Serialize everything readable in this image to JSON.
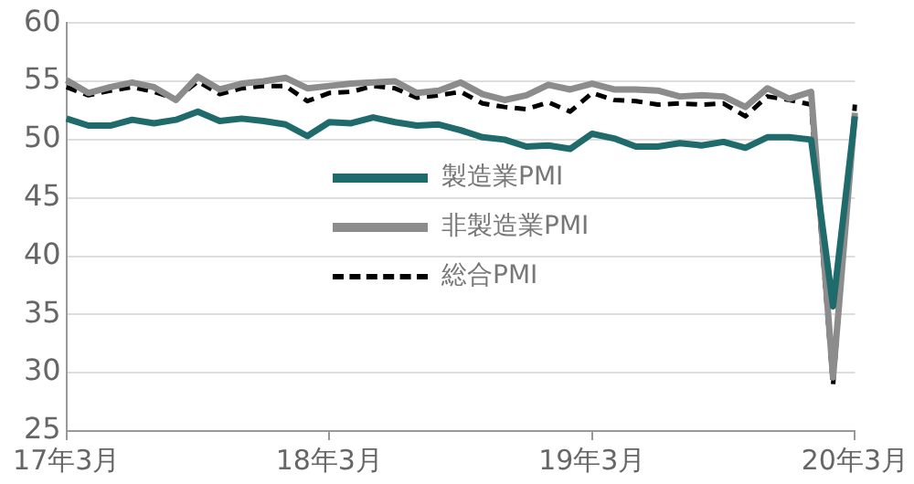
{
  "chart_data": {
    "type": "line",
    "categories": [
      "17年3月",
      null,
      null,
      null,
      null,
      null,
      null,
      null,
      null,
      null,
      null,
      null,
      "18年3月",
      null,
      null,
      null,
      null,
      null,
      null,
      null,
      null,
      null,
      null,
      null,
      "19年3月",
      null,
      null,
      null,
      null,
      null,
      null,
      null,
      null,
      null,
      null,
      null,
      "20年3月"
    ],
    "series": [
      {
        "name": "製造業PMI",
        "color": "#1f6b6b",
        "line_style": "solid",
        "values": [
          51.8,
          51.2,
          51.2,
          51.7,
          51.4,
          51.7,
          52.4,
          51.6,
          51.8,
          51.6,
          51.3,
          50.3,
          51.5,
          51.4,
          51.9,
          51.5,
          51.2,
          51.3,
          50.8,
          50.2,
          50.0,
          49.4,
          49.5,
          49.2,
          50.5,
          50.1,
          49.4,
          49.4,
          49.7,
          49.5,
          49.8,
          49.3,
          50.2,
          50.2,
          50.0,
          35.7,
          52.0
        ]
      },
      {
        "name": "非製造業PMI",
        "color": "#8c8c8c",
        "line_style": "solid",
        "values": [
          55.1,
          54.0,
          54.5,
          54.9,
          54.5,
          53.4,
          55.4,
          54.3,
          54.8,
          55.0,
          55.3,
          54.4,
          54.6,
          54.8,
          54.9,
          55.0,
          54.0,
          54.2,
          54.9,
          53.9,
          53.4,
          53.8,
          54.7,
          54.3,
          54.8,
          54.3,
          54.3,
          54.2,
          53.7,
          53.8,
          53.7,
          52.8,
          54.4,
          53.5,
          54.1,
          29.6,
          52.3
        ]
      },
      {
        "name": "総合PMI",
        "color": "#000000",
        "line_style": "dashed",
        "values": [
          54.5,
          53.8,
          54.2,
          54.5,
          54.1,
          53.5,
          55.0,
          53.9,
          54.4,
          54.6,
          54.6,
          53.3,
          54.0,
          54.1,
          54.6,
          54.4,
          53.6,
          53.8,
          54.1,
          53.1,
          52.8,
          52.6,
          53.2,
          52.4,
          54.0,
          53.4,
          53.3,
          53.0,
          53.1,
          53.0,
          53.1,
          52.0,
          53.7,
          53.4,
          53.0,
          28.9,
          53.0
        ]
      }
    ],
    "ylim": [
      25,
      60
    ],
    "yticks": [
      25,
      30,
      35,
      40,
      45,
      50,
      55,
      60
    ],
    "grid": "y",
    "legend": "center",
    "marker": "none"
  }
}
